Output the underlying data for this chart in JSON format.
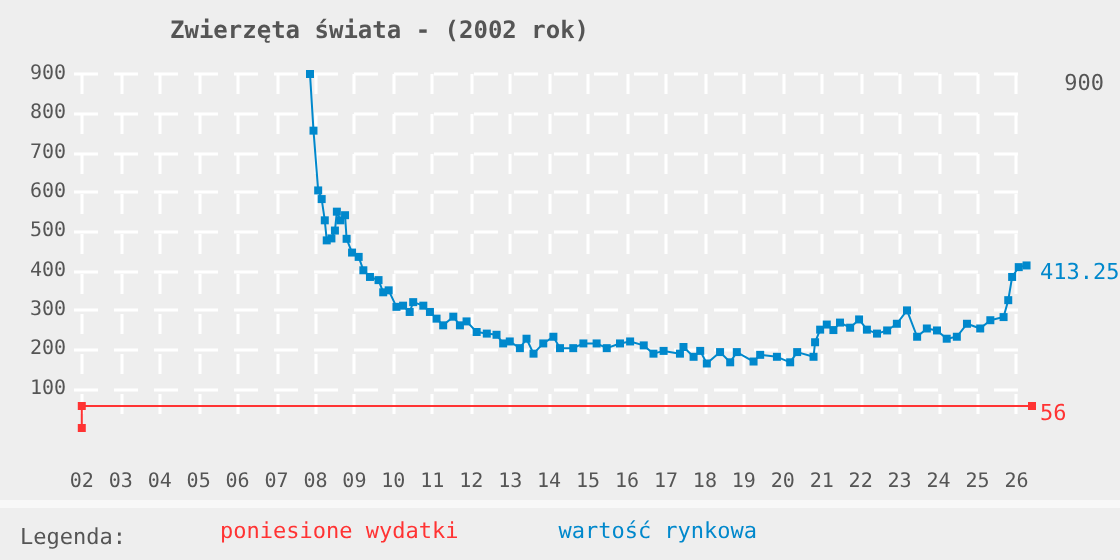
{
  "chart_data": {
    "type": "line",
    "title": "Zwierzęta świata - (2002 rok)",
    "legend_title": "Legenda:",
    "xlim": [
      1.8,
      26.4
    ],
    "xticks": [
      {
        "value": 2,
        "label": "02"
      },
      {
        "value": 3,
        "label": "03"
      },
      {
        "value": 4,
        "label": "04"
      },
      {
        "value": 5,
        "label": "05"
      },
      {
        "value": 6,
        "label": "06"
      },
      {
        "value": 7,
        "label": "07"
      },
      {
        "value": 8,
        "label": "08"
      },
      {
        "value": 9,
        "label": "09"
      },
      10,
      11,
      12,
      13,
      14,
      15,
      16,
      17,
      18,
      19,
      20,
      21,
      22,
      23,
      24,
      25,
      26
    ],
    "ylim": [
      0,
      900
    ],
    "yticks": [
      100,
      200,
      300,
      400,
      500,
      600,
      700,
      800,
      900
    ],
    "grid": true,
    "legend": "bottom",
    "marker": "square",
    "series": [
      {
        "name": "poniesione wydatki",
        "color": "#ff3333",
        "x": [
          2,
          2,
          26.4
        ],
        "values": [
          0,
          56,
          56
        ]
      },
      {
        "name": "wartość rynkowa",
        "color": "#0088cc",
        "x": [
          7.86,
          7.95,
          8.07,
          8.16,
          8.24,
          8.29,
          8.41,
          8.5,
          8.55,
          8.64,
          8.76,
          8.8,
          8.94,
          9.11,
          9.23,
          9.4,
          9.62,
          9.74,
          9.88,
          10.08,
          10.25,
          10.42,
          10.51,
          10.77,
          10.94,
          11.11,
          11.28,
          11.54,
          11.71,
          11.88,
          12.14,
          12.4,
          12.65,
          12.82,
          12.99,
          13.25,
          13.42,
          13.6,
          13.85,
          14.11,
          14.28,
          14.62,
          14.88,
          15.22,
          15.48,
          15.82,
          16.08,
          16.43,
          16.68,
          16.94,
          17.36,
          17.45,
          17.71,
          17.88,
          18.05,
          18.39,
          18.65,
          18.82,
          19.25,
          19.42,
          19.85,
          20.19,
          20.37,
          20.79,
          20.83,
          20.96,
          21.13,
          21.3,
          21.47,
          21.73,
          21.96,
          22.16,
          22.42,
          22.68,
          22.93,
          23.19,
          23.45,
          23.7,
          23.96,
          24.21,
          24.47,
          24.73,
          25.07,
          25.33,
          25.67,
          25.79,
          25.89,
          26.06,
          26.26
        ],
        "values": [
          900,
          756,
          604,
          582,
          528,
          477,
          482,
          502,
          550,
          528,
          541,
          481,
          446,
          435,
          401,
          384,
          376,
          345,
          350,
          308,
          311,
          295,
          320,
          311,
          295,
          278,
          261,
          283,
          261,
          271,
          244,
          240,
          237,
          215,
          220,
          203,
          227,
          189,
          215,
          232,
          203,
          203,
          215,
          215,
          203,
          215,
          220,
          210,
          189,
          196,
          189,
          206,
          181,
          196,
          164,
          193,
          167,
          193,
          169,
          186,
          181,
          167,
          193,
          181,
          218,
          250,
          263,
          249,
          268,
          255,
          276,
          250,
          240,
          248,
          265,
          299,
          232,
          253,
          248,
          227,
          232,
          265,
          253,
          274,
          282,
          325,
          384,
          409,
          413.25
        ]
      }
    ],
    "annotations": [
      "900",
      {
        "text": "413.25",
        "x": 26.4,
        "y": 413.25
      },
      {
        "text": "56",
        "x": 26.4,
        "y": 56
      }
    ]
  }
}
